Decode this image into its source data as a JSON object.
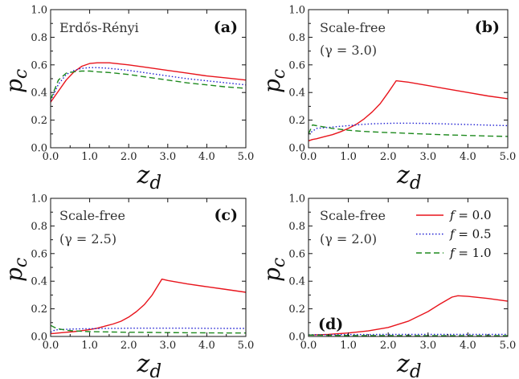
{
  "figure": {
    "legend": [
      {
        "name": "f = 0.0",
        "var": "f",
        "eq": " = 0.0",
        "color": "#e8141c",
        "dash": "solid"
      },
      {
        "name": "f = 0.5",
        "var": "f",
        "eq": " = 0.5",
        "color": "#1f1fd2",
        "dash": "dotted"
      },
      {
        "name": "f = 1.0",
        "var": "f",
        "eq": " = 1.0",
        "color": "#1e8a1e",
        "dash": "dashed"
      }
    ]
  },
  "chart_data": [
    {
      "type": "line",
      "panel_label": "(a)",
      "annotation": [
        "Erdős-Rényi"
      ],
      "ylabel": "p",
      "ylabel_sub": "c",
      "xlabel": "z",
      "xlabel_sub": "d",
      "xlim": [
        0,
        5
      ],
      "ylim": [
        0,
        1
      ],
      "xticks": [
        "0.0",
        "1.0",
        "2.0",
        "3.0",
        "4.0",
        "5.0"
      ],
      "yticks": [
        "0.0",
        "0.2",
        "0.4",
        "0.6",
        "0.8",
        "1.0"
      ],
      "x": [
        0,
        0.2,
        0.4,
        0.6,
        0.8,
        1.0,
        1.2,
        1.5,
        2.0,
        2.5,
        3.0,
        3.5,
        4.0,
        4.5,
        5.0
      ],
      "series": [
        {
          "name": "f = 0.0",
          "values": [
            0.33,
            0.41,
            0.49,
            0.55,
            0.59,
            0.61,
            0.615,
            0.615,
            0.6,
            0.58,
            0.56,
            0.54,
            0.52,
            0.505,
            0.49
          ]
        },
        {
          "name": "f = 0.5",
          "values": [
            0.34,
            0.46,
            0.53,
            0.56,
            0.575,
            0.58,
            0.58,
            0.575,
            0.56,
            0.54,
            0.52,
            0.5,
            0.485,
            0.47,
            0.455
          ]
        },
        {
          "name": "f = 1.0",
          "values": [
            0.35,
            0.49,
            0.54,
            0.55,
            0.555,
            0.555,
            0.55,
            0.545,
            0.53,
            0.51,
            0.49,
            0.47,
            0.455,
            0.44,
            0.43
          ]
        }
      ]
    },
    {
      "type": "line",
      "panel_label": "(b)",
      "annotation": [
        "Scale-free",
        "(γ = 3.0)"
      ],
      "ylabel": "p",
      "ylabel_sub": "c",
      "xlabel": "z",
      "xlabel_sub": "d",
      "xlim": [
        0,
        5
      ],
      "ylim": [
        0,
        1
      ],
      "xticks": [
        "0.0",
        "1.0",
        "2.0",
        "3.0",
        "4.0",
        "5.0"
      ],
      "yticks": [
        "0.0",
        "0.2",
        "0.4",
        "0.6",
        "0.8",
        "1.0"
      ],
      "x": [
        0,
        0.1,
        0.2,
        0.4,
        0.6,
        0.8,
        1.0,
        1.2,
        1.4,
        1.6,
        1.8,
        2.0,
        2.2,
        2.5,
        3.0,
        3.5,
        4.0,
        4.5,
        5.0
      ],
      "series": [
        {
          "name": "f = 0.0",
          "values": [
            0.05,
            0.06,
            0.065,
            0.08,
            0.095,
            0.115,
            0.14,
            0.17,
            0.21,
            0.26,
            0.32,
            0.4,
            0.485,
            0.475,
            0.45,
            0.425,
            0.4,
            0.375,
            0.355
          ]
        },
        {
          "name": "f = 0.5",
          "values": [
            0.1,
            0.12,
            0.14,
            0.145,
            0.15,
            0.155,
            0.16,
            0.165,
            0.17,
            0.173,
            0.175,
            0.177,
            0.178,
            0.178,
            0.176,
            0.172,
            0.168,
            0.164,
            0.16
          ]
        },
        {
          "name": "f = 1.0",
          "values": [
            0.1,
            0.165,
            0.16,
            0.15,
            0.14,
            0.133,
            0.127,
            0.122,
            0.118,
            0.115,
            0.112,
            0.11,
            0.108,
            0.104,
            0.098,
            0.093,
            0.089,
            0.085,
            0.082
          ]
        }
      ]
    },
    {
      "type": "line",
      "panel_label": "(c)",
      "annotation": [
        "Scale-free",
        "(γ = 2.5)"
      ],
      "ylabel": "p",
      "ylabel_sub": "c",
      "xlabel": "z",
      "xlabel_sub": "d",
      "xlim": [
        0,
        5
      ],
      "ylim": [
        0,
        1
      ],
      "xticks": [
        "0.0",
        "1.0",
        "2.0",
        "3.0",
        "4.0",
        "5.0"
      ],
      "yticks": [
        "0.0",
        "0.2",
        "0.4",
        "0.6",
        "0.8",
        "1.0"
      ],
      "x": [
        0,
        0.1,
        0.2,
        0.4,
        0.6,
        0.8,
        1.0,
        1.2,
        1.4,
        1.6,
        1.8,
        2.0,
        2.2,
        2.4,
        2.6,
        2.85,
        3.0,
        3.5,
        4.0,
        4.5,
        5.0
      ],
      "series": [
        {
          "name": "f = 0.0",
          "values": [
            0.02,
            0.022,
            0.025,
            0.03,
            0.035,
            0.042,
            0.05,
            0.06,
            0.075,
            0.09,
            0.11,
            0.14,
            0.18,
            0.23,
            0.3,
            0.415,
            0.405,
            0.38,
            0.36,
            0.34,
            0.32
          ]
        },
        {
          "name": "f = 0.5",
          "values": [
            0.03,
            0.045,
            0.05,
            0.052,
            0.054,
            0.055,
            0.056,
            0.057,
            0.058,
            0.059,
            0.059,
            0.06,
            0.06,
            0.06,
            0.06,
            0.06,
            0.06,
            0.06,
            0.059,
            0.058,
            0.058
          ]
        },
        {
          "name": "f = 1.0",
          "values": [
            0.08,
            0.065,
            0.055,
            0.045,
            0.04,
            0.037,
            0.035,
            0.034,
            0.033,
            0.032,
            0.031,
            0.03,
            0.03,
            0.029,
            0.029,
            0.028,
            0.028,
            0.027,
            0.026,
            0.025,
            0.025
          ]
        }
      ]
    },
    {
      "type": "line",
      "panel_label": "(d)",
      "annotation": [
        "Scale-free",
        "(γ = 2.0)"
      ],
      "ylabel": "p",
      "ylabel_sub": "c",
      "xlabel": "z",
      "xlabel_sub": "d",
      "xlim": [
        0,
        5
      ],
      "ylim": [
        0,
        1
      ],
      "xticks": [
        "0.0",
        "1.0",
        "2.0",
        "3.0",
        "4.0",
        "5.0"
      ],
      "yticks": [
        "0.0",
        "0.2",
        "0.4",
        "0.6",
        "0.8",
        "1.0"
      ],
      "legend_position": "top-right",
      "x": [
        0,
        0.5,
        1.0,
        1.5,
        2.0,
        2.5,
        3.0,
        3.3,
        3.6,
        3.75,
        4.0,
        4.5,
        5.0
      ],
      "series": [
        {
          "name": "f = 0.0",
          "values": [
            0.01,
            0.015,
            0.025,
            0.04,
            0.065,
            0.11,
            0.18,
            0.235,
            0.285,
            0.295,
            0.29,
            0.275,
            0.255
          ]
        },
        {
          "name": "f = 0.5",
          "values": [
            0.012,
            0.013,
            0.014,
            0.014,
            0.015,
            0.015,
            0.015,
            0.015,
            0.015,
            0.015,
            0.015,
            0.015,
            0.015
          ]
        },
        {
          "name": "f = 1.0",
          "values": [
            0.01,
            0.008,
            0.007,
            0.006,
            0.006,
            0.006,
            0.005,
            0.005,
            0.005,
            0.005,
            0.005,
            0.005,
            0.005
          ]
        }
      ]
    }
  ]
}
